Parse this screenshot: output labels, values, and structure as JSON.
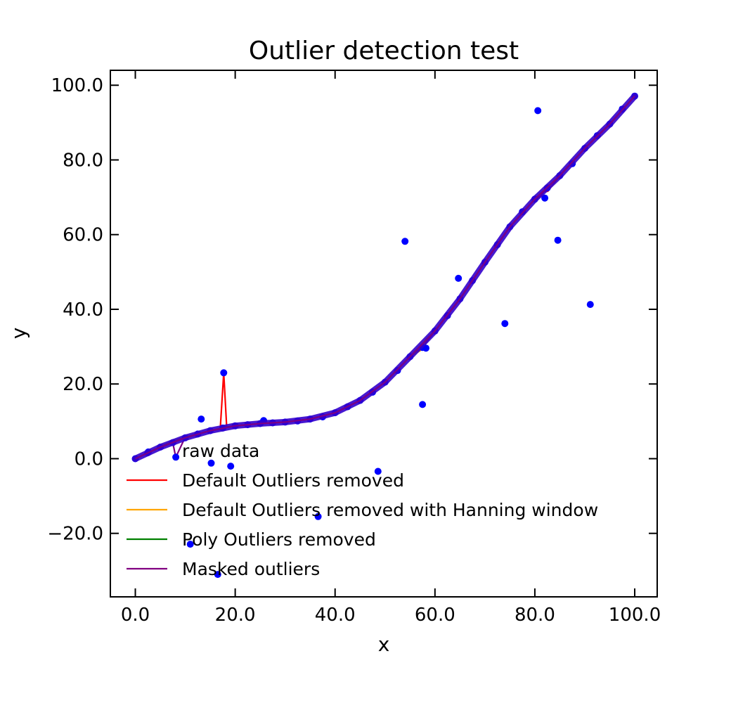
{
  "chart_data": {
    "type": "line",
    "title": "Outlier detection test",
    "xlabel": "x",
    "ylabel": "y",
    "xlim": [
      -5,
      104.5
    ],
    "ylim": [
      -37,
      104
    ],
    "x_ticks": [
      0,
      20,
      40,
      60,
      80,
      100
    ],
    "y_ticks": [
      -20,
      0,
      20,
      40,
      60,
      80,
      100
    ],
    "x_tick_labels": [
      "0.0",
      "20.0",
      "40.0",
      "60.0",
      "80.0",
      "100.0"
    ],
    "y_tick_labels": [
      "−20.0",
      "0.0",
      "20.0",
      "40.0",
      "60.0",
      "80.0",
      "100.0"
    ],
    "grid": false,
    "legend": {
      "position": "lower-left",
      "entries": [
        {
          "label": "raw data",
          "color": "#0000ff",
          "marker": "none"
        },
        {
          "label": "Default Outliers removed",
          "color": "#ff0000",
          "marker": "line"
        },
        {
          "label": "Default Outliers removed with Hanning window",
          "color": "#ffa500",
          "marker": "line"
        },
        {
          "label": "Poly Outliers removed",
          "color": "#008000",
          "marker": "line"
        },
        {
          "label": "Masked outliers",
          "color": "#800080",
          "marker": "line"
        }
      ]
    },
    "series": [
      {
        "name": "raw data",
        "kind": "scatter",
        "color": "#0000ff",
        "x": [
          0,
          2.5,
          5,
          7.5,
          8.1,
          10,
          12.5,
          15,
          17.5,
          20,
          22.5,
          25,
          27.5,
          30,
          32.5,
          35,
          37.5,
          40,
          42.5,
          45,
          47.5,
          50,
          52.5,
          55,
          57.5,
          60,
          62.5,
          65,
          67.5,
          70,
          72.5,
          75,
          77.5,
          80,
          82.5,
          85,
          87.5,
          90,
          92.5,
          95,
          97.5,
          100
        ],
        "y": [
          0,
          1.6,
          3.1,
          4.3,
          0.4,
          5.6,
          6.6,
          7.5,
          8.2,
          8.8,
          9.1,
          9.4,
          9.6,
          9.8,
          10.1,
          10.6,
          11.2,
          12.3,
          13.9,
          15.6,
          17.8,
          20.5,
          23.6,
          27.3,
          29.8,
          34.2,
          38.3,
          42.8,
          47.7,
          52.6,
          57.3,
          62.1,
          66.1,
          69.5,
          72.5,
          75.8,
          79.0,
          83.1,
          86.5,
          89.6,
          93.6,
          97.1
        ]
      },
      {
        "name": "outlier points",
        "kind": "scatter",
        "color": "#0000ff",
        "x": [
          2.6,
          11,
          13.2,
          15.2,
          16.5,
          17.7,
          19.1,
          25.7,
          36.6,
          48.6,
          54.0,
          57.5,
          58.2,
          64.7,
          74.0,
          80.6,
          82.0,
          84.6,
          91.1
        ],
        "y": [
          1.8,
          -22.9,
          10.6,
          -1.2,
          -31.0,
          23.0,
          -2.0,
          10.2,
          -15.5,
          -3.4,
          58.2,
          14.5,
          29.6,
          48.3,
          36.2,
          93.2,
          69.8,
          58.5,
          41.3
        ]
      },
      {
        "name": "Default Outliers removed",
        "kind": "line",
        "color": "#ff0000",
        "x": [
          0,
          5,
          10,
          15,
          17.0,
          17.7,
          18.3,
          20,
          25,
          30,
          35,
          40,
          45,
          50,
          55,
          57.5,
          60,
          65,
          70,
          75,
          80,
          81.2,
          81.9,
          82.6,
          85,
          90,
          95,
          100
        ],
        "y": [
          0,
          3.1,
          5.6,
          7.5,
          7.9,
          23.0,
          8.5,
          8.8,
          9.4,
          9.8,
          10.6,
          12.3,
          15.6,
          20.5,
          27.3,
          29.8,
          34.2,
          42.8,
          52.6,
          62.1,
          69.5,
          70.3,
          71.6,
          71.6,
          75.8,
          83.1,
          89.6,
          97.1
        ]
      },
      {
        "name": "Default Outliers removed with Hanning window",
        "kind": "line",
        "color": "#ffa500",
        "x": [
          0,
          5,
          7.5,
          10,
          15,
          20,
          25,
          30,
          35,
          40,
          45,
          50,
          55,
          57.5,
          58.2,
          60,
          65,
          70,
          75,
          80,
          85,
          90,
          95,
          100
        ],
        "y": [
          0,
          3.2,
          4.8,
          5.8,
          7.5,
          8.8,
          9.4,
          9.8,
          10.6,
          12.3,
          15.6,
          20.5,
          27.3,
          29.3,
          32.0,
          34.2,
          42.8,
          52.6,
          62.1,
          69.5,
          75.8,
          83.1,
          89.6,
          97.1
        ]
      },
      {
        "name": "Poly Outliers removed",
        "kind": "line",
        "color": "#008000",
        "x": [
          0,
          5,
          10,
          15,
          20,
          25,
          30,
          35,
          40,
          45,
          50,
          55,
          60,
          65,
          70,
          75,
          80,
          85,
          90,
          95,
          100
        ],
        "y": [
          0,
          3.1,
          5.6,
          7.5,
          8.8,
          9.4,
          9.8,
          10.6,
          12.3,
          15.6,
          20.5,
          27.3,
          34.2,
          42.8,
          52.6,
          62.1,
          69.5,
          75.8,
          83.1,
          89.6,
          97.1
        ]
      },
      {
        "name": "Masked outliers",
        "kind": "line",
        "color": "#800080",
        "x": [
          0,
          5,
          7.5,
          8.1,
          9.9,
          10,
          15,
          20,
          25,
          30,
          35,
          40,
          45,
          50,
          55,
          60,
          65,
          70,
          75,
          80,
          85,
          90,
          95,
          100
        ],
        "y": [
          0,
          3.1,
          4.3,
          0.4,
          5.5,
          5.6,
          7.5,
          8.8,
          9.4,
          9.8,
          10.6,
          12.3,
          15.6,
          20.5,
          27.3,
          34.2,
          42.8,
          52.6,
          62.1,
          69.5,
          75.8,
          83.1,
          89.6,
          97.1
        ]
      }
    ]
  }
}
